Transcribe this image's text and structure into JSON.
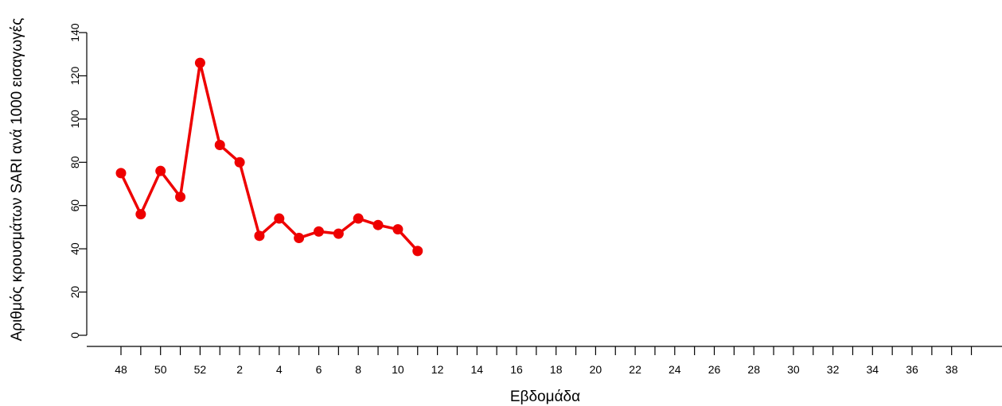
{
  "chart_data": {
    "type": "line",
    "title": "",
    "xlabel": "Εβδομάδα",
    "ylabel": "Αριθμός κρουσμάτων SARI ανά 1000 εισαγωγές",
    "weeks": [
      48,
      49,
      50,
      51,
      52,
      1,
      2,
      3,
      4,
      5,
      6,
      7,
      8,
      9,
      10,
      11,
      12,
      13,
      14,
      15,
      16,
      17,
      18,
      19,
      20,
      21,
      22,
      23,
      24,
      25,
      26,
      27,
      28,
      29,
      30,
      31,
      32,
      33,
      34,
      35,
      36,
      37,
      38,
      39
    ],
    "x_tick_labels": [
      "48",
      "50",
      "52",
      "2",
      "4",
      "6",
      "8",
      "10",
      "12",
      "14",
      "16",
      "18",
      "20",
      "22",
      "24",
      "26",
      "28",
      "30",
      "32",
      "34",
      "36",
      "38"
    ],
    "y_ticks": [
      0,
      20,
      40,
      60,
      80,
      100,
      120,
      140
    ],
    "ylim": [
      0,
      140
    ],
    "grid": false,
    "series": [
      {
        "color": "#ee0000",
        "x": [
          48,
          49,
          50,
          51,
          52,
          1,
          2,
          3,
          4,
          5,
          6,
          7,
          8,
          9,
          10,
          11
        ],
        "values": [
          75,
          56,
          76,
          64,
          126,
          88,
          80,
          46,
          54,
          45,
          48,
          47,
          54,
          51,
          49,
          39
        ]
      }
    ]
  }
}
